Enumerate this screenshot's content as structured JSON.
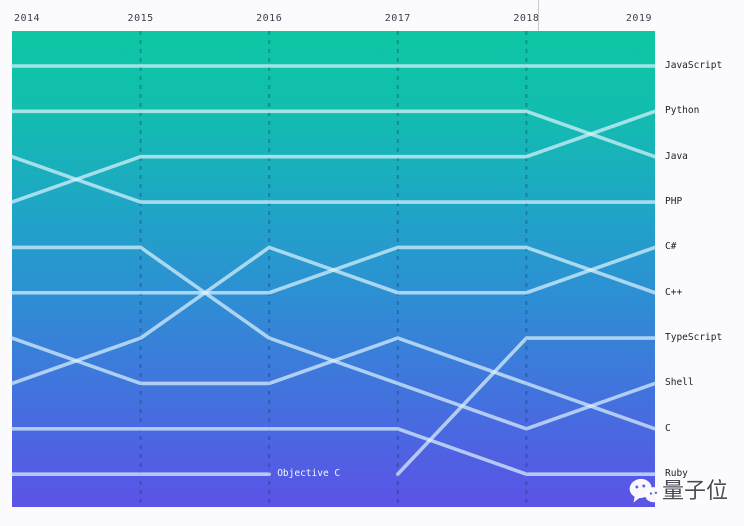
{
  "page": {
    "background": "#fbfbfd"
  },
  "top_axis": {
    "years": [
      "2014",
      "2015",
      "2016",
      "2017",
      "2018",
      "2019"
    ]
  },
  "watermark": {
    "text": "量子位",
    "icon": "wechat-icon"
  },
  "chart_data": {
    "type": "line",
    "subtype": "bump-ranking",
    "title": "",
    "x": [
      "2014",
      "2015",
      "2016",
      "2017",
      "2018",
      "2019"
    ],
    "rank_range": [
      1,
      10
    ],
    "legend_position": "right-edge-labels",
    "grid": "dashed-vertical-at-inner-years",
    "right_labels_top_to_bottom": [
      "JavaScript",
      "Python",
      "Java",
      "PHP",
      "C#",
      "C++",
      "TypeScript",
      "Shell",
      "C",
      "Ruby"
    ],
    "series": [
      {
        "name": "JavaScript",
        "ranks": [
          1,
          1,
          1,
          1,
          1,
          1
        ]
      },
      {
        "name": "Python",
        "ranks": [
          4,
          3,
          3,
          3,
          3,
          2
        ]
      },
      {
        "name": "Java",
        "ranks": [
          2,
          2,
          2,
          2,
          2,
          3
        ]
      },
      {
        "name": "PHP",
        "ranks": [
          3,
          4,
          4,
          4,
          4,
          4
        ]
      },
      {
        "name": "C#",
        "ranks": [
          8,
          7,
          5,
          6,
          6,
          5
        ]
      },
      {
        "name": "C++",
        "ranks": [
          6,
          6,
          6,
          5,
          5,
          6
        ]
      },
      {
        "name": "TypeScript",
        "ranks": [
          null,
          null,
          null,
          10,
          7,
          7
        ]
      },
      {
        "name": "Shell",
        "ranks": [
          5,
          5,
          7,
          8,
          9,
          8
        ]
      },
      {
        "name": "C",
        "ranks": [
          7,
          8,
          8,
          7,
          8,
          9
        ]
      },
      {
        "name": "Ruby",
        "ranks": [
          9,
          9,
          9,
          9,
          10,
          10
        ]
      },
      {
        "name": "Objective C",
        "ranks": [
          10,
          10,
          10,
          null,
          null,
          null
        ]
      }
    ],
    "inline_labels": [
      {
        "text": "Objective C",
        "year_index": 2,
        "rank": 10
      }
    ],
    "colors": {
      "gradient_top": "#0ec7a3",
      "gradient_bottom": "#5c53e6",
      "line": "rgba(219,241,252,0.72)",
      "grid_dash": "rgba(8,48,96,0.32)",
      "axis_text": "#3a4250",
      "label_text": "#1b1f23",
      "inline_text": "#f2f8fd"
    }
  }
}
